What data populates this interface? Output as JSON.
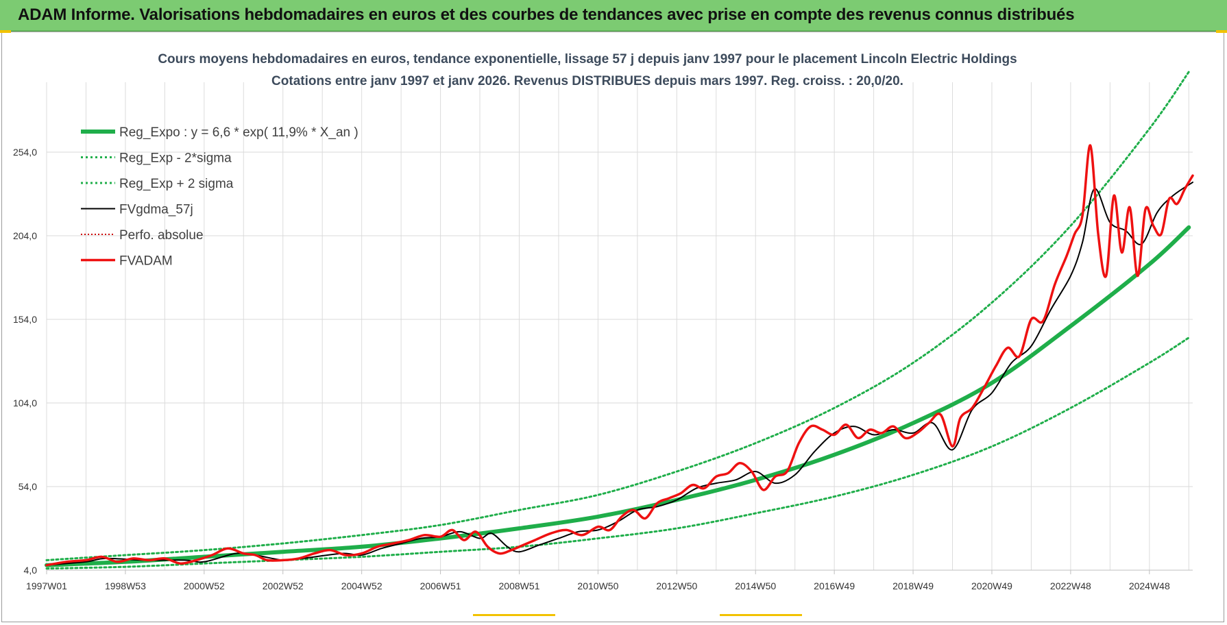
{
  "header": {
    "title": "ADAM Informe. Valorisations hebdomadaires en euros et des courbes de tendances avec prise en compte des revenus connus distribués"
  },
  "colors": {
    "banner": "#7ccb72",
    "trend": "#1fae4a",
    "band": "#1fae4a",
    "smooth": "#000000",
    "perfo": "#cc0000",
    "fvadam": "#ee1111"
  },
  "chart_data": {
    "type": "line",
    "title": "Cours moyens hebdomadaires en euros, tendance exponentielle, lissage 57 j depuis janv 1997 pour le placement Lincoln Electric Holdings",
    "subtitle": "Cotations entre janv 1997 et janv 2026. Revenus DISTRIBUES depuis mars 1997. Reg. croiss. : 20,0/20.",
    "xlabel": "",
    "ylabel": "",
    "xlim": [
      1997.0,
      2026.1
    ],
    "ylim": [
      4,
      304
    ],
    "grid": true,
    "legend_position": "top-left",
    "y_ticks": [
      "4,0",
      "54,0",
      "104,0",
      "154,0",
      "204,0",
      "254,0"
    ],
    "x_ticks": [
      {
        "x": 1997.0,
        "label": "1997W01"
      },
      {
        "x": 1999.0,
        "label": "1998W53"
      },
      {
        "x": 2001.0,
        "label": "2000W52"
      },
      {
        "x": 2003.0,
        "label": "2002W52"
      },
      {
        "x": 2005.0,
        "label": "2004W52"
      },
      {
        "x": 2007.0,
        "label": "2006W51"
      },
      {
        "x": 2009.0,
        "label": "2008W51"
      },
      {
        "x": 2011.0,
        "label": "2010W50"
      },
      {
        "x": 2013.0,
        "label": "2012W50"
      },
      {
        "x": 2015.0,
        "label": "2014W50"
      },
      {
        "x": 2017.0,
        "label": "2016W49"
      },
      {
        "x": 2019.0,
        "label": "2018W49"
      },
      {
        "x": 2021.0,
        "label": "2020W49"
      },
      {
        "x": 2023.0,
        "label": "2022W48"
      },
      {
        "x": 2025.0,
        "label": "2024W48"
      }
    ],
    "legend": [
      {
        "key": "reg",
        "label": "Reg_Expo : y = 6,6 * exp( 11,9% *  X_an )"
      },
      {
        "key": "low",
        "label": "Reg_Exp - 2*sigma"
      },
      {
        "key": "high",
        "label": "Reg_Exp + 2 sigma"
      },
      {
        "key": "smooth",
        "label": "FVgdma_57j"
      },
      {
        "key": "perfo",
        "label": "Perfo. absolue"
      },
      {
        "key": "fvadam",
        "label": "FVADAM"
      }
    ],
    "series": [
      {
        "name": "Reg_Expo : y = 6,6 * exp( 11,9% *  X_an )",
        "key": "reg",
        "x": [
          1997,
          1999,
          2001,
          2003,
          2005,
          2007,
          2009,
          2011,
          2013,
          2015,
          2017,
          2019,
          2021,
          2023,
          2025,
          2026
        ],
        "y": [
          7,
          9,
          12,
          15,
          18,
          23,
          29,
          36,
          46,
          58,
          73,
          92,
          116,
          150,
          187,
          209
        ]
      },
      {
        "name": "Reg_Exp - 2*sigma",
        "key": "low",
        "x": [
          1997,
          1999,
          2001,
          2003,
          2005,
          2007,
          2009,
          2011,
          2013,
          2015,
          2017,
          2019,
          2021,
          2023,
          2025,
          2026
        ],
        "y": [
          5,
          6,
          8,
          10,
          12,
          15,
          18,
          23,
          29,
          38,
          48,
          61,
          78,
          101,
          128,
          143
        ]
      },
      {
        "name": "Reg_Exp + 2 sigma",
        "key": "high",
        "x": [
          1997,
          1999,
          2001,
          2003,
          2005,
          2007,
          2009,
          2011,
          2013,
          2015,
          2017,
          2019,
          2021,
          2023,
          2025,
          2026
        ],
        "y": [
          10,
          13,
          16,
          20,
          25,
          31,
          40,
          49,
          63,
          80,
          101,
          128,
          164,
          210,
          268,
          302
        ]
      },
      {
        "name": "FVgdma_57j",
        "key": "smooth",
        "x": [
          1997.0,
          1998.0,
          1998.5,
          1999.5,
          2000.5,
          2001.0,
          2001.8,
          2002.3,
          2003.0,
          2003.5,
          2004.5,
          2005.0,
          2005.5,
          2006.0,
          2006.5,
          2007.0,
          2007.5,
          2008.0,
          2008.3,
          2008.7,
          2009.0,
          2009.5,
          2010.0,
          2010.5,
          2011.0,
          2011.5,
          2012.0,
          2012.5,
          2013.0,
          2013.5,
          2014.0,
          2014.5,
          2015.0,
          2015.5,
          2016.0,
          2016.5,
          2017.0,
          2017.5,
          2018.0,
          2018.5,
          2019.0,
          2019.5,
          2020.0,
          2020.5,
          2021.0,
          2021.5,
          2022.0,
          2022.5,
          2023.0,
          2023.3,
          2023.6,
          2024.0,
          2024.4,
          2024.8,
          2025.2,
          2025.6,
          2026.1
        ],
        "y": [
          7,
          9,
          11,
          10,
          10,
          9,
          14,
          13,
          10,
          11,
          14,
          13,
          17,
          20,
          23,
          24,
          27,
          23,
          26,
          18,
          15,
          19,
          23,
          27,
          28,
          33,
          40,
          42,
          46,
          53,
          56,
          58,
          63,
          56,
          61,
          75,
          86,
          90,
          85,
          88,
          86,
          92,
          76,
          100,
          110,
          128,
          138,
          160,
          180,
          200,
          232,
          212,
          207,
          199,
          218,
          228,
          236
        ]
      },
      {
        "name": "FVADAM",
        "key": "fvadam",
        "x": [
          1997.0,
          1997.5,
          1998.0,
          1998.4,
          1998.8,
          1999.2,
          1999.6,
          2000.0,
          2000.4,
          2000.8,
          2001.2,
          2001.6,
          2002.0,
          2002.3,
          2002.6,
          2003.0,
          2003.4,
          2003.8,
          2004.2,
          2004.6,
          2005.0,
          2005.4,
          2005.8,
          2006.2,
          2006.6,
          2007.0,
          2007.3,
          2007.6,
          2007.9,
          2008.2,
          2008.5,
          2008.8,
          2009.1,
          2009.4,
          2009.8,
          2010.2,
          2010.6,
          2011.0,
          2011.3,
          2011.6,
          2011.9,
          2012.2,
          2012.5,
          2012.8,
          2013.1,
          2013.4,
          2013.7,
          2014.0,
          2014.3,
          2014.6,
          2014.9,
          2015.2,
          2015.5,
          2015.8,
          2016.1,
          2016.4,
          2016.7,
          2017.0,
          2017.3,
          2017.6,
          2017.9,
          2018.2,
          2018.5,
          2018.8,
          2019.1,
          2019.4,
          2019.7,
          2020.0,
          2020.2,
          2020.5,
          2020.8,
          2021.1,
          2021.4,
          2021.7,
          2022.0,
          2022.3,
          2022.6,
          2022.9,
          2023.1,
          2023.3,
          2023.5,
          2023.7,
          2023.9,
          2024.1,
          2024.3,
          2024.5,
          2024.7,
          2024.9,
          2025.1,
          2025.3,
          2025.5,
          2025.7,
          2025.9,
          2026.1
        ],
        "y": [
          7,
          9,
          10,
          12,
          9,
          11,
          10,
          11,
          8,
          10,
          13,
          17,
          14,
          13,
          10,
          10,
          11,
          14,
          16,
          13,
          14,
          18,
          20,
          22,
          25,
          24,
          28,
          22,
          27,
          18,
          14,
          16,
          19,
          22,
          26,
          28,
          25,
          30,
          28,
          36,
          40,
          35,
          44,
          47,
          50,
          55,
          53,
          60,
          62,
          68,
          63,
          52,
          60,
          63,
          80,
          90,
          88,
          85,
          91,
          83,
          88,
          86,
          90,
          83,
          86,
          92,
          97,
          78,
          95,
          101,
          113,
          126,
          137,
          132,
          154,
          153,
          175,
          192,
          205,
          216,
          258,
          205,
          180,
          228,
          194,
          221,
          180,
          220,
          210,
          205,
          226,
          223,
          232,
          240
        ]
      }
    ]
  }
}
